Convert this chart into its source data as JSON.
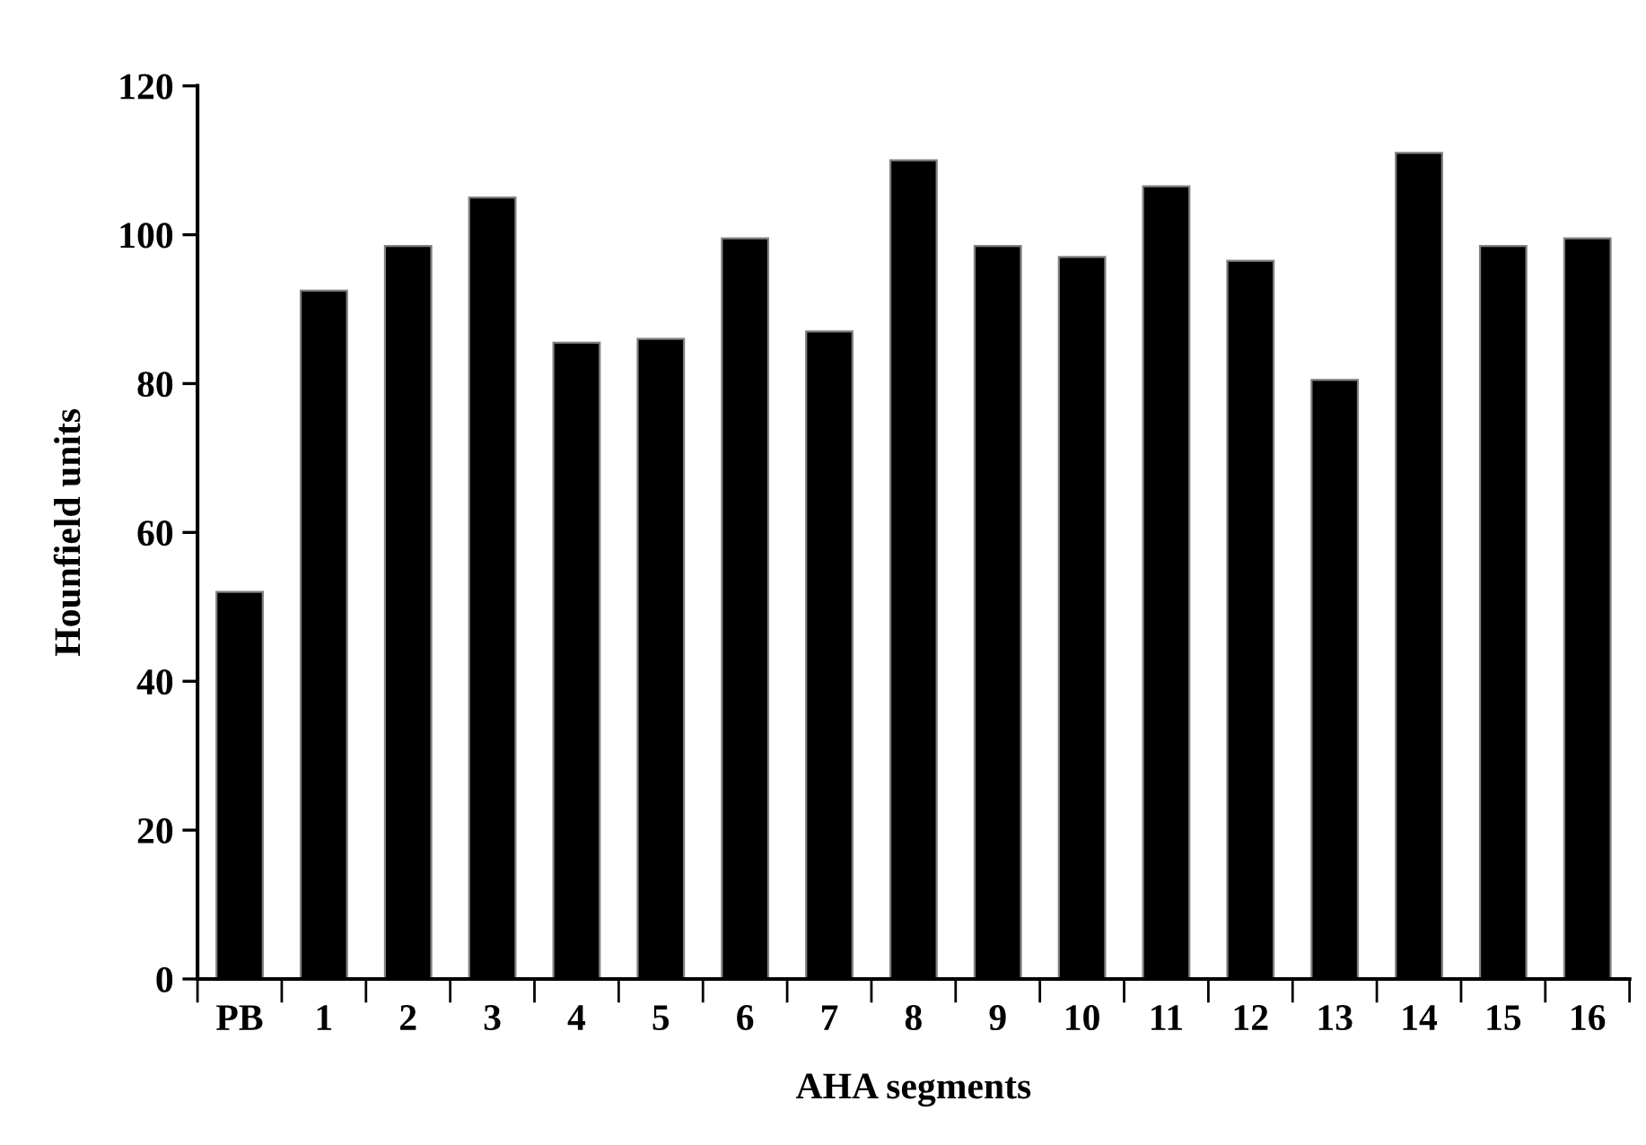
{
  "chart_data": {
    "type": "bar",
    "xlabel": "AHA segments",
    "ylabel": "Hounfield units",
    "categories": [
      "PB",
      "1",
      "2",
      "3",
      "4",
      "5",
      "6",
      "7",
      "8",
      "9",
      "10",
      "11",
      "12",
      "13",
      "14",
      "15",
      "16"
    ],
    "values": [
      52,
      92.5,
      98.5,
      105,
      85.5,
      86,
      99.5,
      87,
      110,
      98.5,
      97,
      106.5,
      96.5,
      80.5,
      111,
      98.5,
      99.5
    ],
    "color": "#000000",
    "ylim": [
      0,
      120
    ],
    "yticks": [
      0,
      20,
      40,
      60,
      80,
      100,
      120
    ],
    "grid": false,
    "legend": false
  }
}
